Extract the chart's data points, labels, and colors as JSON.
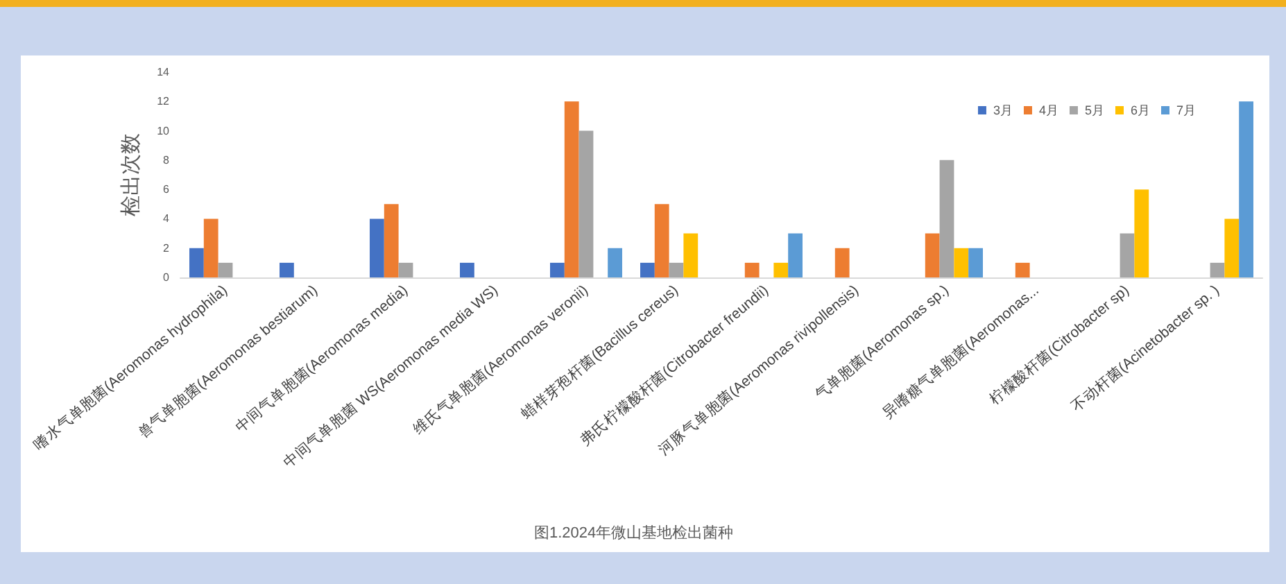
{
  "chart_data": {
    "type": "bar",
    "title": "图1.2024年微山基地检出菌种",
    "ylabel": "检出次数",
    "categories": [
      "嗜水气单胞菌(Aeromonas hydrophila)",
      "兽气单胞菌(Aeromonas bestiarum)",
      "中间气单胞菌(Aeromonas media)",
      "中间气单胞菌 WS(Aeromonas media WS)",
      "维氏气单胞菌(Aeromonas veronii)",
      "蜡样芽孢杆菌(Bacillus cereus)",
      "弗氏柠檬酸杆菌(Citrobacter freundii)",
      "河豚气单胞菌(Aeromonas rivipollensis)",
      "气单胞菌(Aeromonas sp.)",
      "异嗜糖气单胞菌(Aeromonas...",
      "柠檬酸杆菌(Citrobacter sp)",
      "不动杆菌(Acinetobacter sp. )"
    ],
    "series": [
      {
        "name": "3月",
        "color": "#4472c4",
        "values": [
          2,
          1,
          4,
          1,
          1,
          1,
          null,
          null,
          null,
          null,
          null,
          null
        ]
      },
      {
        "name": "4月",
        "color": "#ed7d31",
        "values": [
          4,
          null,
          5,
          null,
          12,
          5,
          1,
          2,
          3,
          1,
          null,
          null
        ]
      },
      {
        "name": "5月",
        "color": "#a5a5a5",
        "values": [
          1,
          null,
          1,
          null,
          10,
          1,
          null,
          null,
          8,
          null,
          3,
          1
        ]
      },
      {
        "name": "6月",
        "color": "#ffc000",
        "values": [
          null,
          null,
          null,
          null,
          null,
          3,
          1,
          null,
          2,
          null,
          6,
          4
        ]
      },
      {
        "name": "7月",
        "color": "#5b9bd5",
        "values": [
          null,
          null,
          null,
          null,
          2,
          null,
          3,
          null,
          2,
          null,
          null,
          12
        ]
      }
    ],
    "ylim": [
      0,
      14
    ],
    "yticks": [
      0,
      2,
      4,
      6,
      8,
      10,
      12,
      14
    ],
    "grid": false,
    "legend": "top right"
  }
}
